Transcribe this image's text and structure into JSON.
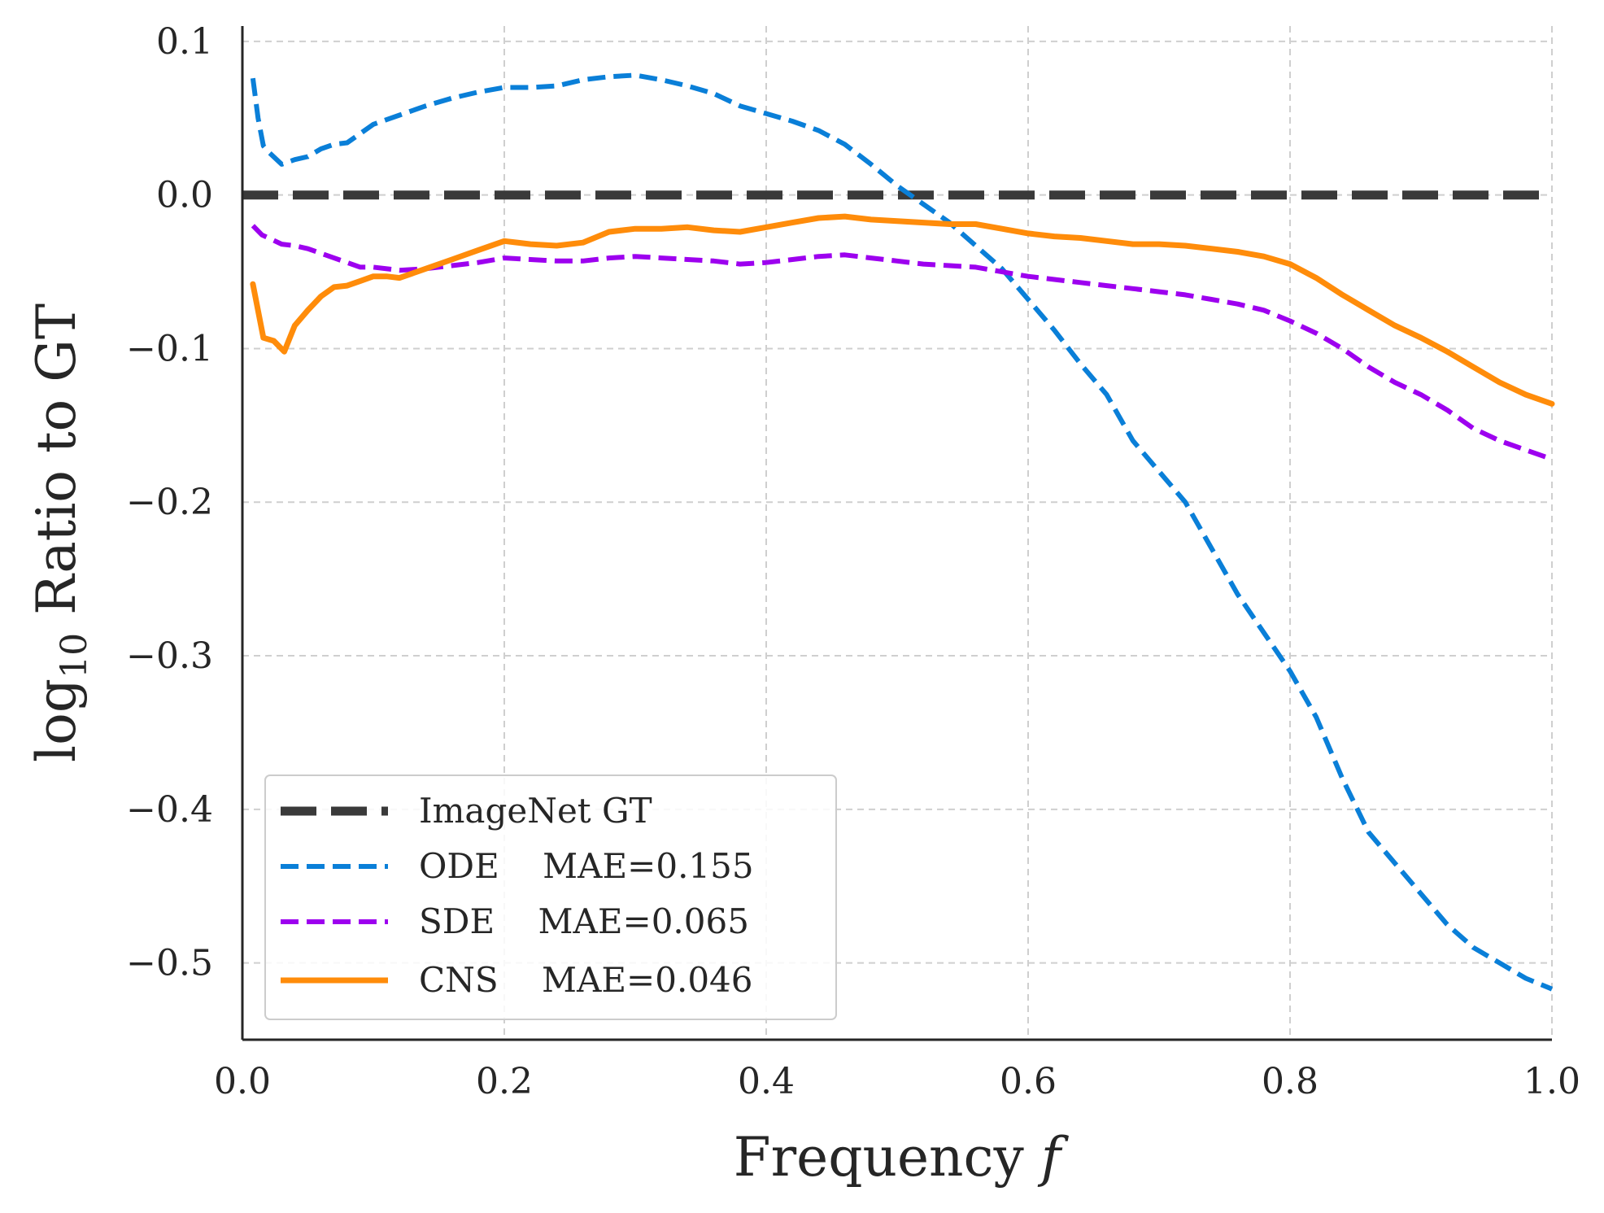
{
  "chart_data": {
    "type": "line",
    "title": "",
    "xlabel": "Frequency",
    "xlabel_var": "f",
    "ylabel_prefix": "log",
    "ylabel_sub": "10",
    "ylabel_suffix": "Ratio to GT",
    "xlim": [
      0.0,
      1.0
    ],
    "ylim": [
      -0.55,
      0.11
    ],
    "xticks": [
      0.0,
      0.2,
      0.4,
      0.6,
      0.8,
      1.0
    ],
    "xtick_labels": [
      "0.0",
      "0.2",
      "0.4",
      "0.6",
      "0.8",
      "1.0"
    ],
    "yticks": [
      0.1,
      0.0,
      -0.1,
      -0.2,
      -0.3,
      -0.4,
      -0.5
    ],
    "ytick_labels": [
      "0.1",
      "0.0",
      "−0.1",
      "−0.2",
      "−0.3",
      "−0.4",
      "−0.5"
    ],
    "grid": true,
    "legend_position": "lower-left",
    "series": [
      {
        "name": "ImageNet GT",
        "legend_label": "ImageNet GT",
        "color": "#3a3a3a",
        "style": "dashed-thick",
        "x": [
          0.0,
          1.0
        ],
        "y": [
          0.0,
          0.0
        ]
      },
      {
        "name": "ODE",
        "legend_label": "ODE    MAE=0.155",
        "color": "#0a7fd8",
        "style": "dashed",
        "x": [
          0.008,
          0.012,
          0.016,
          0.02,
          0.03,
          0.04,
          0.05,
          0.06,
          0.07,
          0.08,
          0.09,
          0.1,
          0.12,
          0.14,
          0.16,
          0.18,
          0.2,
          0.22,
          0.24,
          0.26,
          0.28,
          0.3,
          0.32,
          0.34,
          0.36,
          0.38,
          0.4,
          0.42,
          0.44,
          0.46,
          0.48,
          0.5,
          0.52,
          0.54,
          0.56,
          0.58,
          0.6,
          0.62,
          0.64,
          0.66,
          0.68,
          0.7,
          0.72,
          0.74,
          0.76,
          0.78,
          0.8,
          0.82,
          0.84,
          0.86,
          0.88,
          0.9,
          0.92,
          0.94,
          0.96,
          0.98,
          1.0
        ],
        "y": [
          0.076,
          0.05,
          0.032,
          0.028,
          0.02,
          0.023,
          0.025,
          0.03,
          0.033,
          0.034,
          0.04,
          0.046,
          0.052,
          0.058,
          0.063,
          0.067,
          0.07,
          0.07,
          0.071,
          0.075,
          0.077,
          0.078,
          0.075,
          0.071,
          0.066,
          0.058,
          0.053,
          0.048,
          0.042,
          0.033,
          0.02,
          0.006,
          -0.006,
          -0.018,
          -0.033,
          -0.048,
          -0.068,
          -0.088,
          -0.11,
          -0.13,
          -0.16,
          -0.18,
          -0.2,
          -0.23,
          -0.26,
          -0.285,
          -0.31,
          -0.34,
          -0.38,
          -0.415,
          -0.435,
          -0.455,
          -0.475,
          -0.49,
          -0.5,
          -0.51,
          -0.517
        ]
      },
      {
        "name": "SDE",
        "legend_label": "SDE    MAE=0.065",
        "color": "#9d00ef",
        "style": "dashed",
        "x": [
          0.008,
          0.015,
          0.02,
          0.03,
          0.04,
          0.05,
          0.06,
          0.07,
          0.08,
          0.09,
          0.1,
          0.12,
          0.14,
          0.16,
          0.18,
          0.2,
          0.22,
          0.24,
          0.26,
          0.28,
          0.3,
          0.32,
          0.34,
          0.36,
          0.38,
          0.4,
          0.42,
          0.44,
          0.46,
          0.48,
          0.5,
          0.52,
          0.54,
          0.56,
          0.58,
          0.6,
          0.62,
          0.64,
          0.66,
          0.68,
          0.7,
          0.72,
          0.74,
          0.76,
          0.78,
          0.8,
          0.82,
          0.84,
          0.86,
          0.88,
          0.9,
          0.92,
          0.94,
          0.96,
          0.98,
          1.0
        ],
        "y": [
          -0.02,
          -0.026,
          -0.028,
          -0.032,
          -0.033,
          -0.035,
          -0.038,
          -0.041,
          -0.044,
          -0.047,
          -0.047,
          -0.049,
          -0.048,
          -0.046,
          -0.044,
          -0.041,
          -0.042,
          -0.043,
          -0.043,
          -0.041,
          -0.04,
          -0.041,
          -0.042,
          -0.043,
          -0.045,
          -0.044,
          -0.042,
          -0.04,
          -0.039,
          -0.041,
          -0.043,
          -0.045,
          -0.046,
          -0.047,
          -0.05,
          -0.053,
          -0.055,
          -0.057,
          -0.059,
          -0.061,
          -0.063,
          -0.065,
          -0.068,
          -0.071,
          -0.075,
          -0.082,
          -0.09,
          -0.1,
          -0.112,
          -0.122,
          -0.13,
          -0.14,
          -0.152,
          -0.16,
          -0.166,
          -0.172
        ]
      },
      {
        "name": "CNS",
        "legend_label": "CNS    MAE=0.046",
        "color": "#ff8c0a",
        "style": "solid",
        "x": [
          0.008,
          0.016,
          0.024,
          0.032,
          0.04,
          0.05,
          0.06,
          0.07,
          0.08,
          0.09,
          0.1,
          0.11,
          0.12,
          0.14,
          0.16,
          0.18,
          0.2,
          0.22,
          0.24,
          0.26,
          0.28,
          0.3,
          0.32,
          0.34,
          0.36,
          0.38,
          0.4,
          0.42,
          0.44,
          0.46,
          0.48,
          0.5,
          0.52,
          0.54,
          0.56,
          0.58,
          0.6,
          0.62,
          0.64,
          0.66,
          0.68,
          0.7,
          0.72,
          0.74,
          0.76,
          0.78,
          0.8,
          0.82,
          0.84,
          0.86,
          0.88,
          0.9,
          0.92,
          0.94,
          0.96,
          0.98,
          1.0
        ],
        "y": [
          -0.058,
          -0.093,
          -0.095,
          -0.102,
          -0.085,
          -0.075,
          -0.066,
          -0.06,
          -0.059,
          -0.056,
          -0.053,
          -0.053,
          -0.054,
          -0.048,
          -0.042,
          -0.036,
          -0.03,
          -0.032,
          -0.033,
          -0.031,
          -0.024,
          -0.022,
          -0.022,
          -0.021,
          -0.023,
          -0.024,
          -0.021,
          -0.018,
          -0.015,
          -0.014,
          -0.016,
          -0.017,
          -0.018,
          -0.019,
          -0.019,
          -0.022,
          -0.025,
          -0.027,
          -0.028,
          -0.03,
          -0.032,
          -0.032,
          -0.033,
          -0.035,
          -0.037,
          -0.04,
          -0.045,
          -0.054,
          -0.065,
          -0.075,
          -0.085,
          -0.093,
          -0.102,
          -0.112,
          -0.122,
          -0.13,
          -0.136
        ]
      }
    ]
  }
}
